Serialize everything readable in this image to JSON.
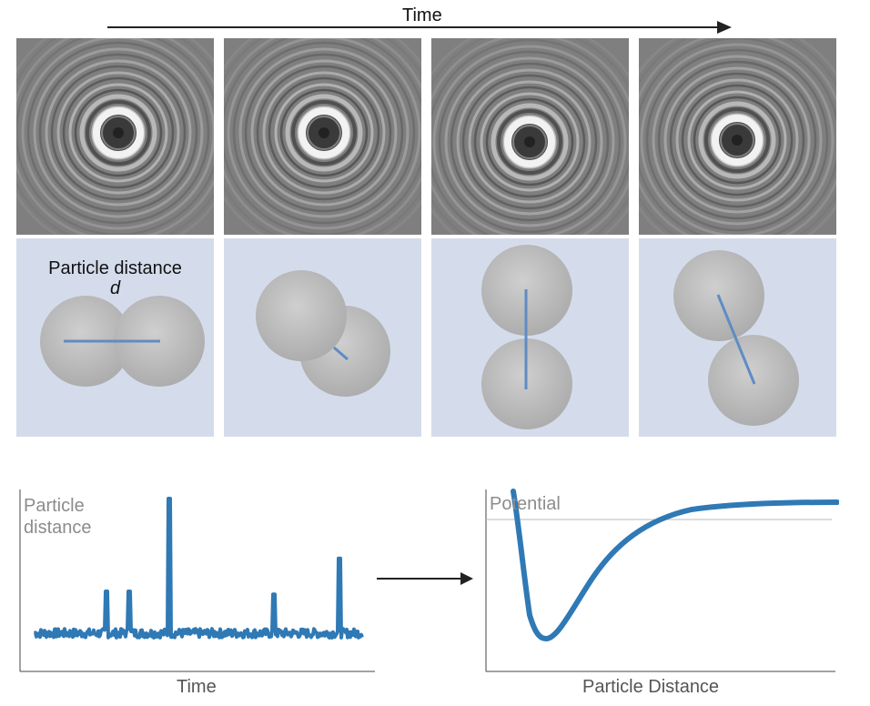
{
  "header": {
    "time_label": "Time"
  },
  "frames": [
    {
      "pair_angle_deg": 0,
      "ring_count": 9
    },
    {
      "pair_angle_deg": 35,
      "ring_count": 9
    },
    {
      "pair_angle_deg": 90,
      "ring_count": 9
    },
    {
      "pair_angle_deg": 70,
      "ring_count": 9
    }
  ],
  "schematic": {
    "distance_label": "Particle distance",
    "distance_symbol": "d",
    "sphere_color": "#c2c2c2",
    "line_color": "#5f8cc4",
    "panel_color": "#d4dcec"
  },
  "left_plot": {
    "ylabel_line1": "Particle",
    "ylabel_line2": "distance",
    "xlabel": "Time",
    "line_color": "#2f79b5",
    "baseline_level": 0.1,
    "spikes": [
      {
        "t": 0.22,
        "value": 0.38
      },
      {
        "t": 0.29,
        "value": 0.38
      },
      {
        "t": 0.41,
        "value": 1.0
      },
      {
        "t": 0.73,
        "value": 0.36
      },
      {
        "t": 0.93,
        "value": 0.6
      }
    ]
  },
  "right_plot": {
    "ylabel": "Potential",
    "xlabel": "Particle Distance",
    "line_color": "#2f79b5",
    "reference_line_color": "#bbbbbb"
  },
  "arrow_color": "#222222"
}
